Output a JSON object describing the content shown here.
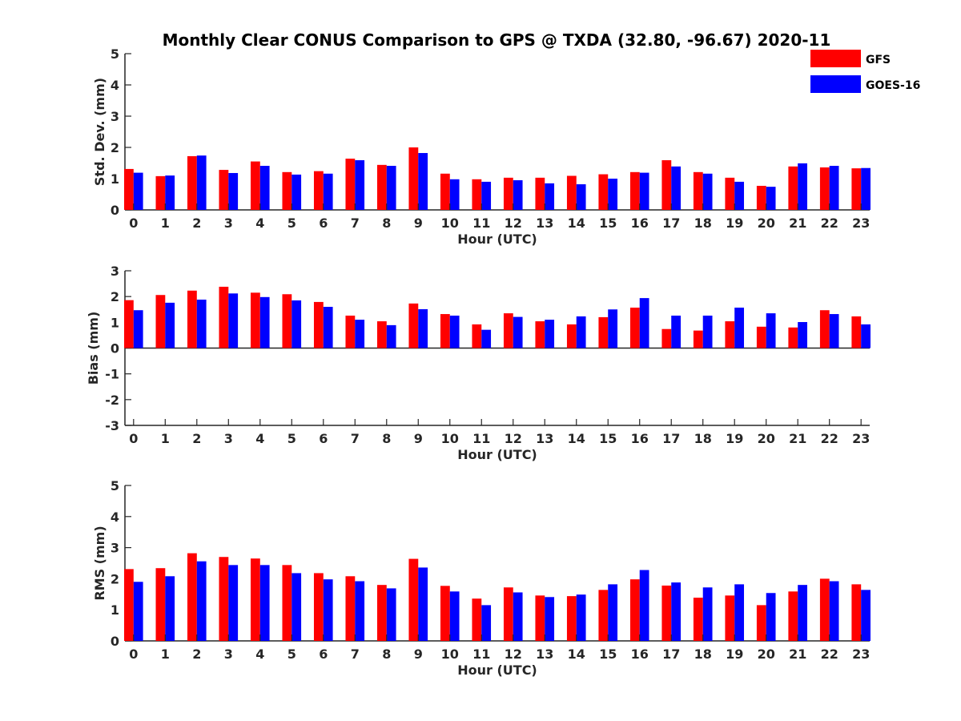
{
  "title": "Monthly Clear CONUS Comparison to GPS @ TXDA (32.80, -96.67) 2020-11",
  "legend": {
    "placement": "top-right",
    "items": [
      {
        "name": "GFS",
        "color": "#ff0000"
      },
      {
        "name": "GOES-16",
        "color": "#0000ff"
      }
    ]
  },
  "chart_data": [
    {
      "type": "bar",
      "xlabel": "Hour (UTC)",
      "ylabel": "Std. Dev. (mm)",
      "ylim": [
        0,
        5
      ],
      "yticks": [
        0,
        1,
        2,
        3,
        4,
        5
      ],
      "categories": [
        "0",
        "1",
        "2",
        "3",
        "4",
        "5",
        "6",
        "7",
        "8",
        "9",
        "10",
        "11",
        "12",
        "13",
        "14",
        "15",
        "16",
        "17",
        "18",
        "19",
        "20",
        "21",
        "22",
        "23"
      ],
      "series": [
        {
          "name": "GFS",
          "color": "#ff0000",
          "values": [
            1.31,
            1.08,
            1.72,
            1.28,
            1.55,
            1.21,
            1.24,
            1.64,
            1.44,
            2.0,
            1.16,
            0.98,
            1.03,
            1.03,
            1.09,
            1.14,
            1.21,
            1.59,
            1.21,
            1.03,
            0.77,
            1.39,
            1.36,
            1.33
          ]
        },
        {
          "name": "GOES-16",
          "color": "#0000ff",
          "values": [
            1.19,
            1.1,
            1.74,
            1.18,
            1.41,
            1.13,
            1.16,
            1.59,
            1.41,
            1.82,
            0.98,
            0.9,
            0.95,
            0.85,
            0.82,
            1.0,
            1.19,
            1.39,
            1.16,
            0.9,
            0.74,
            1.49,
            1.41,
            1.34
          ]
        }
      ]
    },
    {
      "type": "bar",
      "xlabel": "Hour (UTC)",
      "ylabel": "Bias (mm)",
      "ylim": [
        -3,
        3
      ],
      "yticks": [
        -3,
        -2,
        -1,
        0,
        1,
        2,
        3
      ],
      "categories": [
        "0",
        "1",
        "2",
        "3",
        "4",
        "5",
        "6",
        "7",
        "8",
        "9",
        "10",
        "11",
        "12",
        "13",
        "14",
        "15",
        "16",
        "17",
        "18",
        "19",
        "20",
        "21",
        "22",
        "23"
      ],
      "series": [
        {
          "name": "GFS",
          "color": "#ff0000",
          "values": [
            1.86,
            2.06,
            2.23,
            2.38,
            2.15,
            2.09,
            1.79,
            1.26,
            1.04,
            1.73,
            1.32,
            0.92,
            1.35,
            1.04,
            0.92,
            1.2,
            1.57,
            0.74,
            0.68,
            1.04,
            0.83,
            0.8,
            1.47,
            1.23
          ]
        },
        {
          "name": "GOES-16",
          "color": "#0000ff",
          "values": [
            1.47,
            1.76,
            1.88,
            2.12,
            1.98,
            1.85,
            1.6,
            1.1,
            0.89,
            1.51,
            1.26,
            0.71,
            1.21,
            1.1,
            1.23,
            1.5,
            1.94,
            1.26,
            1.26,
            1.57,
            1.35,
            1.01,
            1.32,
            0.92
          ]
        }
      ]
    },
    {
      "type": "bar",
      "xlabel": "Hour (UTC)",
      "ylabel": "RMS (mm)",
      "ylim": [
        0,
        5
      ],
      "yticks": [
        0,
        1,
        2,
        3,
        4,
        5
      ],
      "categories": [
        "0",
        "1",
        "2",
        "3",
        "4",
        "5",
        "6",
        "7",
        "8",
        "9",
        "10",
        "11",
        "12",
        "13",
        "14",
        "15",
        "16",
        "17",
        "18",
        "19",
        "20",
        "21",
        "22",
        "23"
      ],
      "series": [
        {
          "name": "GFS",
          "color": "#ff0000",
          "values": [
            2.31,
            2.34,
            2.82,
            2.7,
            2.65,
            2.44,
            2.18,
            2.08,
            1.8,
            2.64,
            1.77,
            1.36,
            1.72,
            1.46,
            1.44,
            1.64,
            1.98,
            1.78,
            1.39,
            1.46,
            1.15,
            1.59,
            2.0,
            1.82
          ]
        },
        {
          "name": "GOES-16",
          "color": "#0000ff",
          "values": [
            1.9,
            2.08,
            2.56,
            2.44,
            2.44,
            2.18,
            1.98,
            1.92,
            1.69,
            2.36,
            1.59,
            1.15,
            1.56,
            1.41,
            1.49,
            1.82,
            2.28,
            1.88,
            1.72,
            1.82,
            1.54,
            1.8,
            1.92,
            1.64
          ]
        }
      ]
    }
  ]
}
